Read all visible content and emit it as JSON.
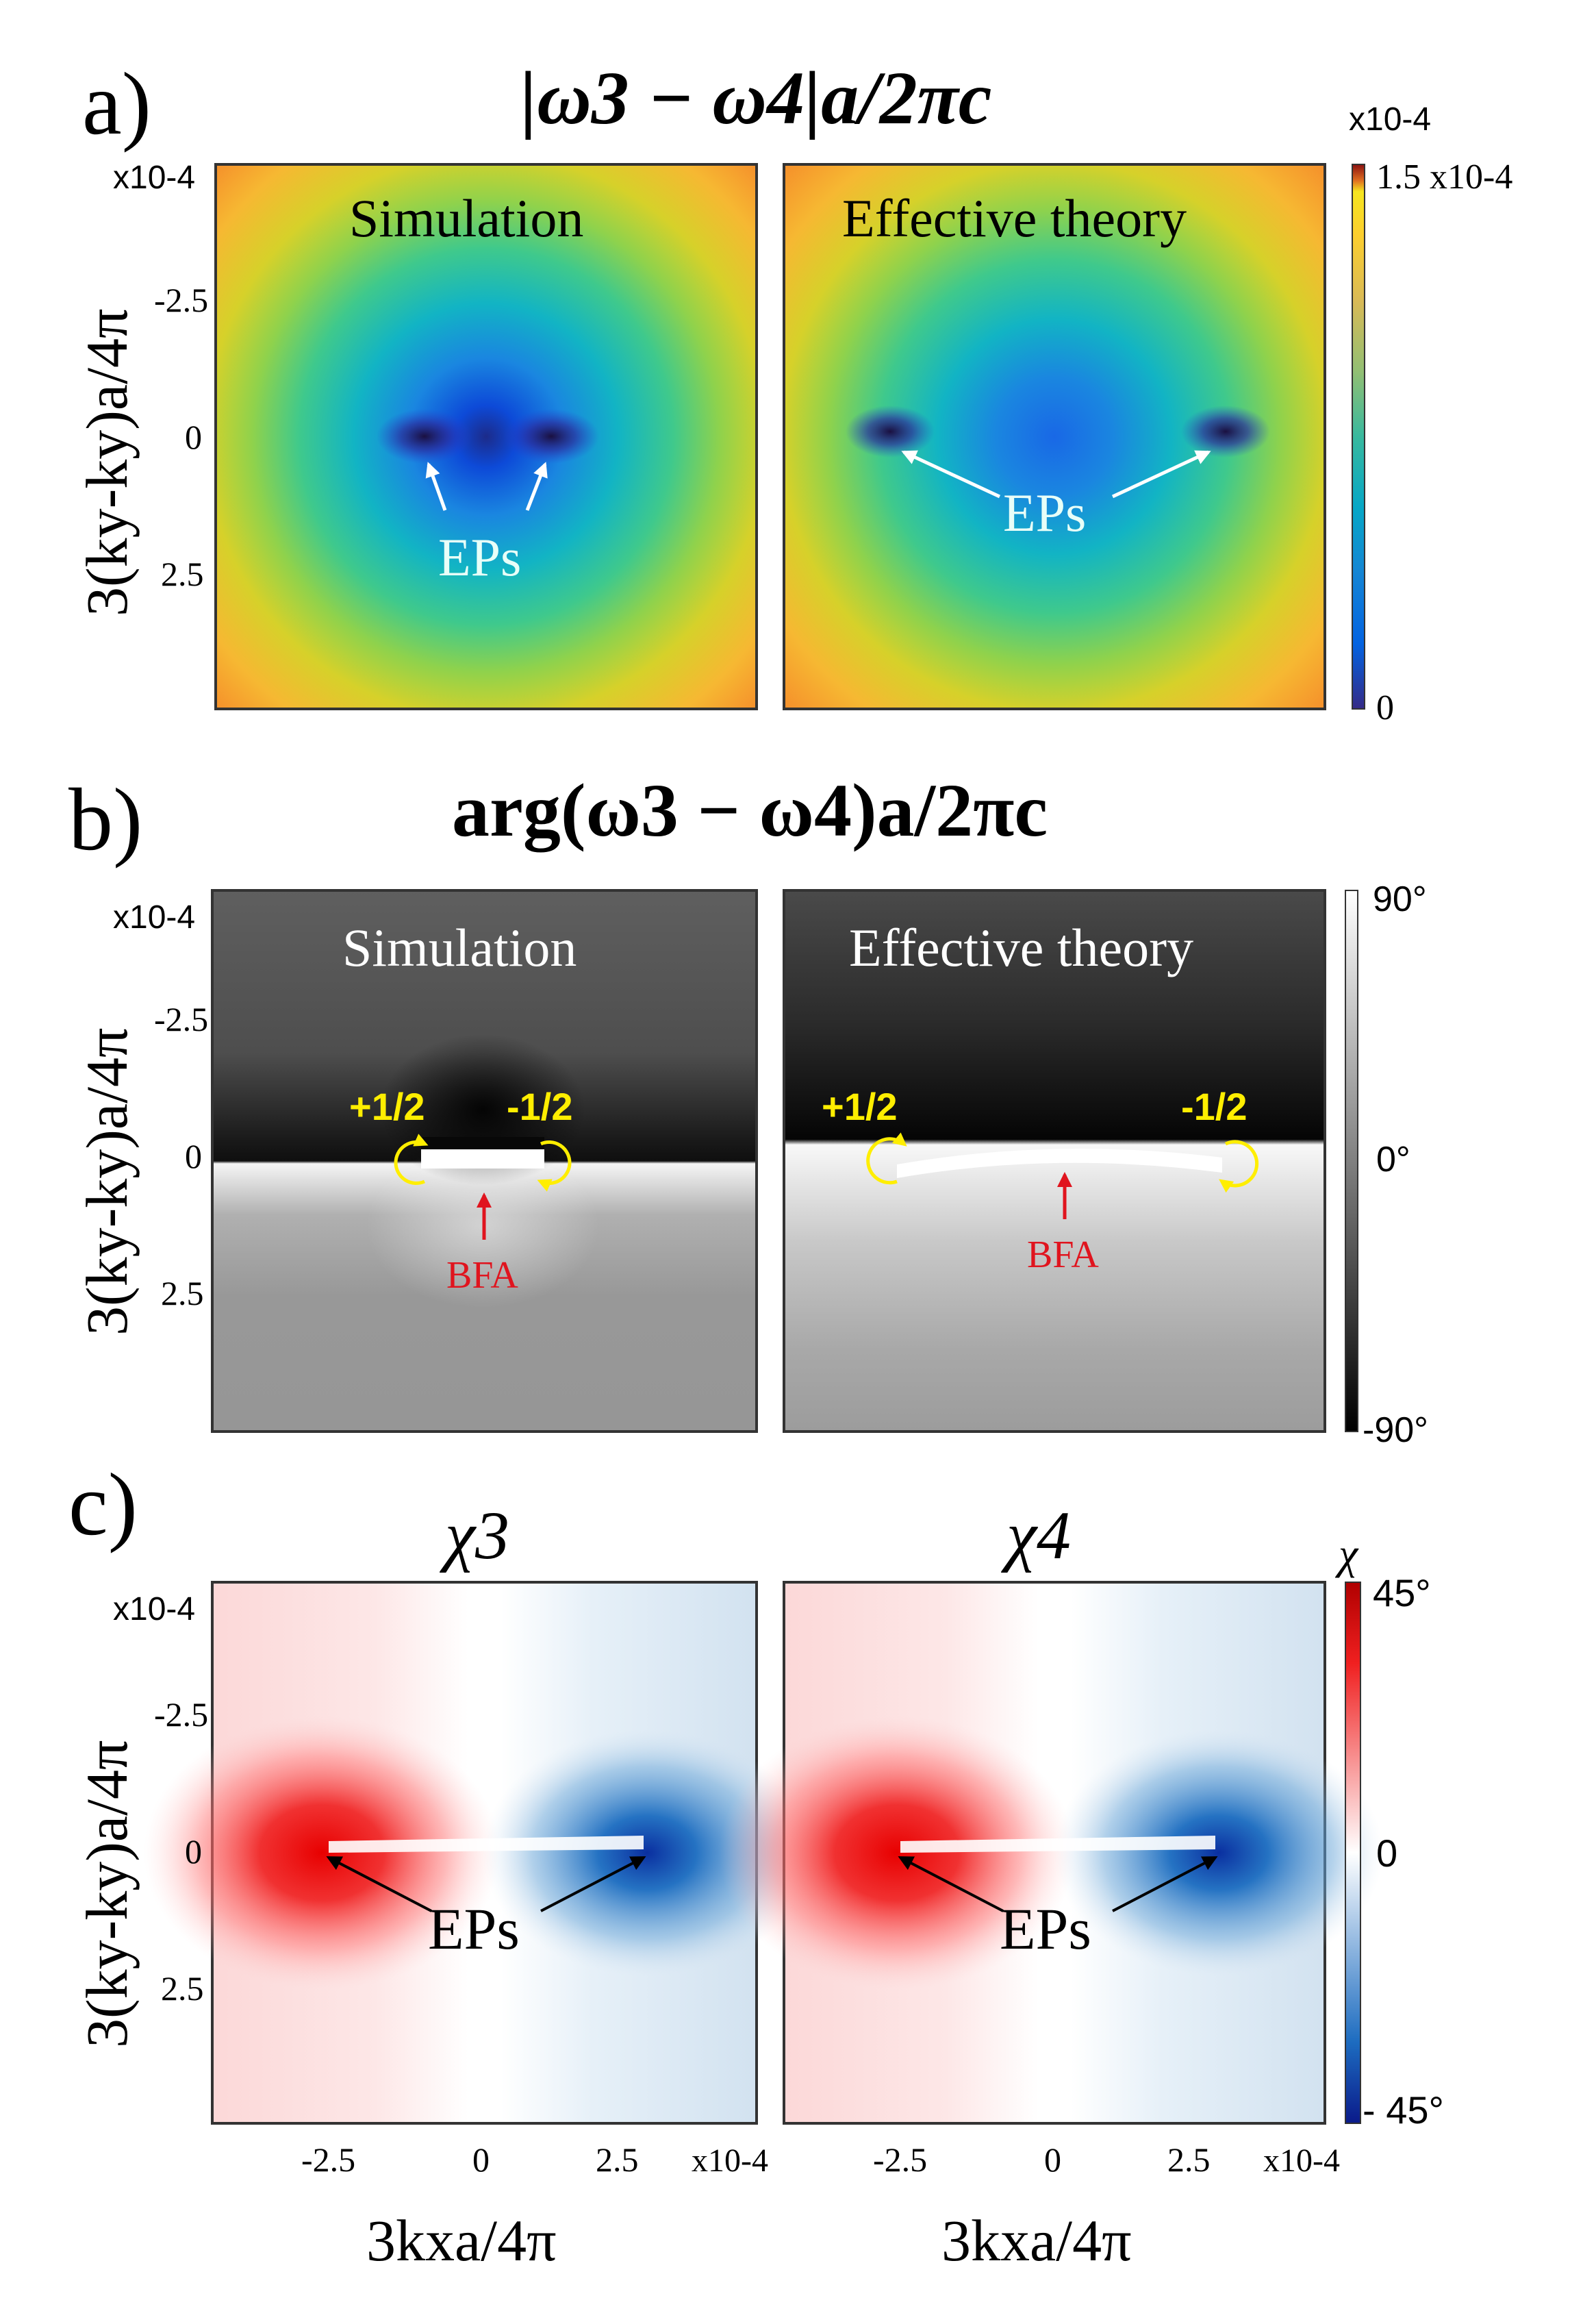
{
  "chart_data": [
    {
      "type": "heatmap",
      "panel_label": "a)",
      "title": "|ω3 − ω4|a/2πc",
      "ylabel": "3(ky-ky)a/4π",
      "y_ticks": [
        "-2.5",
        "0",
        "2.5"
      ],
      "y_multiplier": "x10-4",
      "x_ticks": [],
      "colormap": "parula",
      "colorbar": {
        "multiplier": "x10-4",
        "max_label": "1.5 x10-4",
        "min_label": "0",
        "range": [
          0,
          0.00015
        ]
      },
      "subplots": [
        {
          "title": "Simulation",
          "eps": [
            [
              -0.0001,
              0
            ],
            [
              0.0001,
              0
            ]
          ],
          "annotation": "EPs"
        },
        {
          "title": "Effective theory",
          "eps": [
            [
              -0.00028,
              0
            ],
            [
              0.00028,
              0
            ]
          ],
          "annotation": "EPs"
        }
      ]
    },
    {
      "type": "heatmap",
      "panel_label": "b)",
      "title": "arg(ω3 − ω4)a/2πc",
      "ylabel": "3(ky-ky)a/4π",
      "y_ticks": [
        "-2.5",
        "0",
        "2.5"
      ],
      "y_multiplier": "x10-4",
      "x_ticks": [],
      "colormap": "gray",
      "colorbar": {
        "max_label": "90°",
        "mid_label": "0°",
        "min_label": "-90°",
        "range": [
          -90,
          90
        ]
      },
      "subplots": [
        {
          "title": "Simulation",
          "charges": [
            "+1/2",
            "-1/2"
          ],
          "annotation": "BFA"
        },
        {
          "title": "Effective theory",
          "charges": [
            "+1/2",
            "-1/2"
          ],
          "annotation": "BFA"
        }
      ]
    },
    {
      "type": "heatmap",
      "panel_label": "c)",
      "ylabel": "3(ky-ky)a/4π",
      "xlabel": "3kxa/4π",
      "y_ticks": [
        "-2.5",
        "0",
        "2.5"
      ],
      "x_ticks": [
        "-2.5",
        "0",
        "2.5"
      ],
      "y_multiplier": "x10-4",
      "x_multiplier": "x10-4",
      "colormap": "red-white-blue",
      "colorbar": {
        "symbol": "χ",
        "max_label": "45°",
        "mid_label": "0",
        "min_label": "- 45°",
        "range": [
          -45,
          45
        ]
      },
      "subplots": [
        {
          "title": "χ3",
          "annotation": "EPs"
        },
        {
          "title": "χ4",
          "annotation": "EPs"
        }
      ]
    }
  ],
  "colors": {
    "ep_label_a": "#e8fff8",
    "charge_yellow": "#ffee00",
    "bfa_red": "#e0141e",
    "ep_arrow_c": "#000000",
    "frame": "#333333"
  }
}
